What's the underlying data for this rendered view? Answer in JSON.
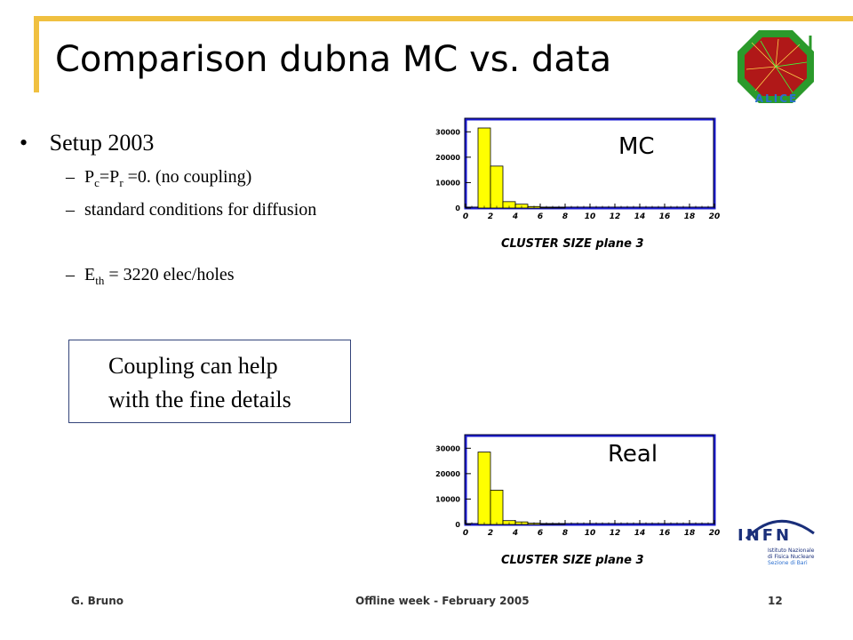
{
  "slide": {
    "title": "Comparison dubna MC vs. data",
    "bullets": {
      "main": "Setup 2003",
      "sub1_p": "P",
      "sub1_c": "c",
      "sub1_mid": "=P",
      "sub1_r": "r",
      "sub1_rest": " =0. (no coupling)",
      "sub2": "standard conditions for diffusion",
      "sub3_e": "E",
      "sub3_th": "th",
      "sub3_rest": " = 3220 elec/holes",
      "dash": "–",
      "dot": "•"
    },
    "callout": {
      "line1": "Coupling can  help",
      "line2": "with the fine  details"
    },
    "footer": {
      "author": "G. Bruno",
      "event": "Offline week - February  2005",
      "page": "12"
    },
    "logos": {
      "alice_text": "ALICE",
      "infn_text": "INFN",
      "infn_line1": "Istituto Nazionale",
      "infn_line2": "di Fisica Nucleare",
      "infn_line3": "Sezione di Bari"
    }
  },
  "chart_data": [
    {
      "type": "bar",
      "label": "MC",
      "xlabel": "CLUSTER SIZE  plane 3",
      "xlim": [
        0,
        20
      ],
      "ylim": [
        0,
        35000
      ],
      "xticks": [
        0,
        2,
        4,
        6,
        8,
        10,
        12,
        14,
        16,
        18,
        20
      ],
      "yticks": [
        0,
        10000,
        20000,
        30000
      ],
      "bin_width": 1,
      "x": [
        1,
        2,
        3,
        4,
        5,
        6,
        7
      ],
      "values": [
        31500,
        16500,
        2500,
        1500,
        600,
        300,
        100
      ],
      "colors": {
        "bar": "#ffff00",
        "frame": "#1a1ad0",
        "edge": "#000000"
      }
    },
    {
      "type": "bar",
      "label": "Real",
      "xlabel": "CLUSTER SIZE  plane 3",
      "xlim": [
        0,
        20
      ],
      "ylim": [
        0,
        35000
      ],
      "xticks": [
        0,
        2,
        4,
        6,
        8,
        10,
        12,
        14,
        16,
        18,
        20
      ],
      "yticks": [
        0,
        10000,
        20000,
        30000
      ],
      "bin_width": 1,
      "x": [
        1,
        2,
        3,
        4,
        5,
        6,
        7
      ],
      "values": [
        28500,
        13500,
        1500,
        1000,
        500,
        200,
        100
      ],
      "colors": {
        "bar": "#ffff00",
        "frame": "#1a1ad0",
        "edge": "#000000"
      }
    }
  ]
}
